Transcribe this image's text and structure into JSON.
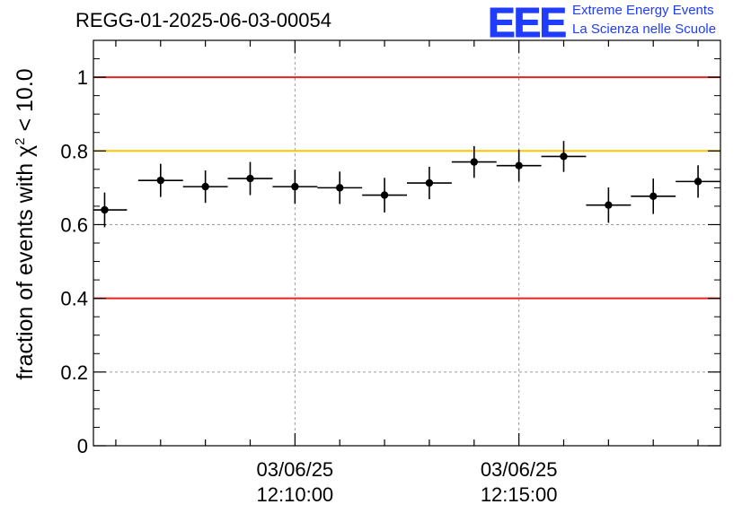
{
  "header": {
    "title": "REGG-01-2025-06-03-00054",
    "logo_text": "EEE",
    "tagline_1": "Extreme Energy Events",
    "tagline_2": "La Scienza nelle Scuole",
    "logo_color": "#1f3cff"
  },
  "chart_data": {
    "type": "scatter",
    "title": "REGG-01-2025-06-03-00054",
    "ylabel": "fraction of events with χ² < 10.0",
    "xlabel": "",
    "ylim": [
      0,
      1.1
    ],
    "yticks": [
      0,
      0.2,
      0.4,
      0.6,
      0.8,
      1
    ],
    "ytick_labels": [
      "0",
      "0.2",
      "0.4",
      "0.6",
      "0.8",
      "1"
    ],
    "x_unit": "minutes after 12:10:00 on 03/06/25",
    "xlim": [
      -4.5,
      9.5
    ],
    "xtick_labels": [
      {
        "x": 0,
        "date": "03/06/25",
        "time": "12:10:00"
      },
      {
        "x": 5,
        "date": "03/06/25",
        "time": "12:15:00"
      }
    ],
    "grid": true,
    "reference_lines": [
      {
        "y": 1.0,
        "color": "#e8221c"
      },
      {
        "y": 0.8,
        "color": "#ffc400"
      },
      {
        "y": 0.4,
        "color": "#e8221c"
      }
    ],
    "points": [
      {
        "x": -4.25,
        "xerr": 0.5,
        "y": 0.64,
        "yerr": 0.047
      },
      {
        "x": -3.0,
        "xerr": 0.5,
        "y": 0.72,
        "yerr": 0.045
      },
      {
        "x": -2.0,
        "xerr": 0.5,
        "y": 0.703,
        "yerr": 0.044
      },
      {
        "x": -1.0,
        "xerr": 0.5,
        "y": 0.725,
        "yerr": 0.045
      },
      {
        "x": 0.0,
        "xerr": 0.5,
        "y": 0.703,
        "yerr": 0.046
      },
      {
        "x": 1.0,
        "xerr": 0.5,
        "y": 0.7,
        "yerr": 0.044
      },
      {
        "x": 2.0,
        "xerr": 0.5,
        "y": 0.68,
        "yerr": 0.047
      },
      {
        "x": 3.0,
        "xerr": 0.5,
        "y": 0.713,
        "yerr": 0.044
      },
      {
        "x": 4.0,
        "xerr": 0.5,
        "y": 0.77,
        "yerr": 0.043
      },
      {
        "x": 5.0,
        "xerr": 0.5,
        "y": 0.76,
        "yerr": 0.043
      },
      {
        "x": 6.0,
        "xerr": 0.5,
        "y": 0.785,
        "yerr": 0.042
      },
      {
        "x": 7.0,
        "xerr": 0.5,
        "y": 0.653,
        "yerr": 0.048
      },
      {
        "x": 8.0,
        "xerr": 0.5,
        "y": 0.677,
        "yerr": 0.048
      },
      {
        "x": 9.0,
        "xerr": 0.5,
        "y": 0.717,
        "yerr": 0.044
      }
    ]
  }
}
